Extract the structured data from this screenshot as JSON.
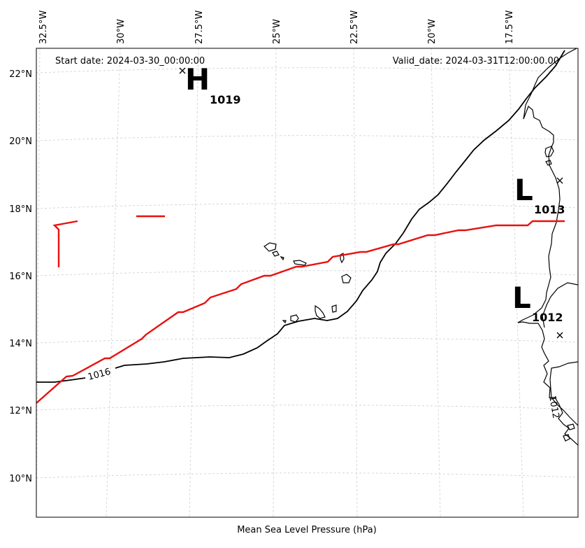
{
  "header": {
    "start_date": "Start date: 2024-03-30_00:00:00",
    "valid_date": "Valid_date: 2024-03-31T12:00:00.00"
  },
  "caption": "Mean Sea Level Pressure (hPa)",
  "longitude_labels": [
    "32.5°W",
    "30°W",
    "27.5°W",
    "25°W",
    "22.5°W",
    "20°W",
    "17.5°W"
  ],
  "latitude_labels": [
    "22°N",
    "20°N",
    "18°N",
    "16°N",
    "14°N",
    "12°N",
    "10°N"
  ],
  "pressure_centers": [
    {
      "type": "H",
      "value": "1019"
    },
    {
      "type": "L",
      "value": "1013"
    },
    {
      "type": "L",
      "value": "1012"
    }
  ],
  "contour_labels": [
    "1016",
    "1012"
  ],
  "colors": {
    "isobar_1016": "#000000",
    "isobar_highlight": "#e8110f",
    "coastline": "#000000",
    "gridlines": "#cccccc"
  }
}
